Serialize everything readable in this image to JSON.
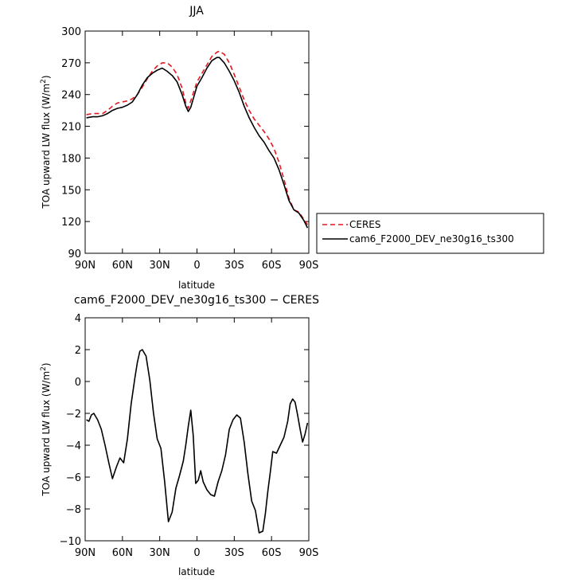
{
  "chart_data": [
    {
      "type": "line",
      "title": "JJA",
      "xlabel": "latitude",
      "ylabel": "TOA upward LW flux (W/m",
      "ylabel_sup": "2",
      "ylabel_tail": ")",
      "xlim": [
        90,
        -90
      ],
      "ylim": [
        90,
        300
      ],
      "xticks": [
        90,
        60,
        30,
        0,
        -30,
        -60,
        -90
      ],
      "xtick_labels": [
        "90N",
        "60N",
        "30N",
        "0",
        "30S",
        "60S",
        "90S"
      ],
      "yticks": [
        90,
        120,
        150,
        180,
        210,
        240,
        270,
        300
      ],
      "ytick_labels": [
        "90",
        "120",
        "150",
        "180",
        "210",
        "240",
        "270",
        "300"
      ],
      "legend": "right",
      "grid": false,
      "x": [
        89,
        84,
        80,
        76,
        72,
        68,
        64,
        60,
        56,
        52,
        48,
        44,
        40,
        36,
        32,
        28,
        24,
        20,
        16,
        12,
        9,
        7,
        5,
        2,
        0,
        -4,
        -8,
        -12,
        -16,
        -18,
        -22,
        -26,
        -30,
        -34,
        -38,
        -42,
        -46,
        -50,
        -54,
        -58,
        -62,
        -66,
        -70,
        -74,
        -78,
        -82,
        -86,
        -89
      ],
      "series": [
        {
          "name": "CERES",
          "color": "#e8141e",
          "dash": true,
          "values": [
            221,
            222,
            222,
            222,
            225,
            229,
            232,
            233,
            234,
            236,
            240,
            247,
            255,
            262,
            267,
            270,
            270,
            266,
            259,
            246,
            232,
            227,
            234,
            245,
            252,
            260,
            268,
            276,
            280,
            281,
            278,
            270,
            259,
            247,
            235,
            225,
            217,
            211,
            205,
            198,
            189,
            176,
            160,
            142,
            131,
            129,
            122,
            117
          ]
        },
        {
          "name": "cam6_F2000_DEV_ne30g16_ts300",
          "color": "#000000",
          "dash": false,
          "values": [
            218,
            219,
            219,
            220,
            222,
            225,
            227,
            228,
            230,
            233,
            240,
            249,
            256,
            260,
            263,
            265,
            262,
            258,
            252,
            240,
            229,
            224,
            228,
            240,
            248,
            256,
            265,
            272,
            275,
            275,
            270,
            262,
            253,
            242,
            229,
            218,
            209,
            201,
            195,
            187,
            180,
            169,
            155,
            140,
            131,
            128,
            121,
            114
          ]
        }
      ]
    },
    {
      "type": "line",
      "title": "cam6_F2000_DEV_ne30g16_ts300 − CERES",
      "xlabel": "latitude",
      "ylabel": "TOA upward LW flux (W/m",
      "ylabel_sup": "2",
      "ylabel_tail": ")",
      "xlim": [
        90,
        -90
      ],
      "ylim": [
        -10,
        4
      ],
      "xticks": [
        90,
        60,
        30,
        0,
        -30,
        -60,
        -90
      ],
      "xtick_labels": [
        "90N",
        "60N",
        "30N",
        "0",
        "30S",
        "60S",
        "90S"
      ],
      "yticks": [
        -10,
        -8,
        -6,
        -4,
        -2,
        0,
        2,
        4
      ],
      "ytick_labels": [
        "−10",
        "−8",
        "−6",
        "−4",
        "−2",
        "0",
        "2",
        "4"
      ],
      "grid": false,
      "x": [
        89,
        87,
        85,
        83,
        80,
        77,
        74,
        71,
        68,
        65,
        62,
        59,
        56,
        53,
        50,
        48,
        46,
        44,
        41,
        38,
        35,
        32,
        29,
        26,
        23,
        20,
        17,
        14,
        11,
        9,
        7,
        5,
        3,
        1,
        -1,
        -3,
        -5,
        -8,
        -11,
        -14,
        -17,
        -20,
        -23,
        -26,
        -29,
        -32,
        -35,
        -38,
        -41,
        -44,
        -47,
        -50,
        -53,
        -55,
        -57,
        -59,
        -61,
        -64,
        -67,
        -70,
        -73,
        -75,
        -77,
        -79,
        -81,
        -83,
        -85,
        -87,
        -89
      ],
      "series": [
        {
          "name": "",
          "color": "#000000",
          "dash": false,
          "values": [
            -2.4,
            -2.5,
            -2.1,
            -2.0,
            -2.4,
            -3.0,
            -4.0,
            -5.1,
            -6.1,
            -5.4,
            -4.8,
            -5.1,
            -3.6,
            -1.4,
            0.2,
            1.2,
            1.9,
            2.0,
            1.6,
            0.1,
            -2.0,
            -3.6,
            -4.2,
            -6.3,
            -8.8,
            -8.2,
            -6.7,
            -5.9,
            -5.0,
            -4.0,
            -2.8,
            -1.8,
            -3.4,
            -6.4,
            -6.2,
            -5.6,
            -6.3,
            -6.8,
            -7.1,
            -7.2,
            -6.3,
            -5.6,
            -4.6,
            -3.0,
            -2.4,
            -2.1,
            -2.3,
            -3.8,
            -5.8,
            -7.5,
            -8.1,
            -9.5,
            -9.4,
            -8.3,
            -6.9,
            -5.7,
            -4.4,
            -4.5,
            -4.0,
            -3.5,
            -2.5,
            -1.4,
            -1.1,
            -1.3,
            -2.1,
            -3.0,
            -3.8,
            -3.3,
            -2.6
          ]
        }
      ]
    }
  ]
}
